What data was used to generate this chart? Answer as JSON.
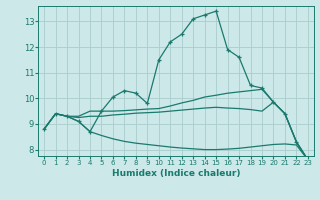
{
  "xlabel": "Humidex (Indice chaleur)",
  "bg_color": "#cce8e8",
  "line_color": "#1a7a6e",
  "grid_color": "#aacccc",
  "xlim": [
    -0.5,
    23.5
  ],
  "ylim": [
    7.75,
    13.6
  ],
  "xticks": [
    0,
    1,
    2,
    3,
    4,
    5,
    6,
    7,
    8,
    9,
    10,
    11,
    12,
    13,
    14,
    15,
    16,
    17,
    18,
    19,
    20,
    21,
    22,
    23
  ],
  "yticks": [
    8,
    9,
    10,
    11,
    12,
    13
  ],
  "line1_x": [
    0,
    1,
    2,
    3,
    4,
    5,
    6,
    7,
    8,
    9,
    10,
    11,
    12,
    13,
    14,
    15,
    16,
    17,
    18,
    19,
    20,
    21,
    22,
    23
  ],
  "line1_y": [
    8.8,
    9.4,
    9.3,
    9.1,
    8.7,
    9.5,
    10.05,
    10.3,
    10.2,
    9.8,
    11.5,
    12.2,
    12.5,
    13.1,
    13.25,
    13.4,
    11.9,
    11.6,
    10.5,
    10.4,
    9.85,
    9.4,
    8.3,
    7.6
  ],
  "line2_x": [
    0,
    1,
    2,
    3,
    4,
    5,
    6,
    7,
    8,
    9,
    10,
    11,
    12,
    13,
    14,
    15,
    16,
    17,
    18,
    19,
    20,
    21,
    22,
    23
  ],
  "line2_y": [
    8.8,
    9.4,
    9.3,
    9.3,
    9.5,
    9.5,
    9.5,
    9.52,
    9.55,
    9.58,
    9.6,
    9.7,
    9.82,
    9.92,
    10.05,
    10.12,
    10.2,
    10.25,
    10.3,
    10.35,
    9.85,
    9.4,
    8.3,
    7.6
  ],
  "line3_x": [
    0,
    1,
    2,
    3,
    4,
    5,
    6,
    7,
    8,
    9,
    10,
    11,
    12,
    13,
    14,
    15,
    16,
    17,
    18,
    19,
    20,
    21,
    22,
    23
  ],
  "line3_y": [
    8.8,
    9.4,
    9.3,
    9.25,
    9.3,
    9.3,
    9.35,
    9.38,
    9.42,
    9.44,
    9.46,
    9.5,
    9.54,
    9.58,
    9.62,
    9.65,
    9.62,
    9.6,
    9.56,
    9.5,
    9.85,
    9.4,
    8.3,
    7.6
  ],
  "line4_x": [
    0,
    1,
    2,
    3,
    4,
    5,
    6,
    7,
    8,
    9,
    10,
    11,
    12,
    13,
    14,
    15,
    16,
    17,
    18,
    19,
    20,
    21,
    22,
    23
  ],
  "line4_y": [
    8.8,
    9.4,
    9.3,
    9.1,
    8.7,
    8.55,
    8.42,
    8.32,
    8.25,
    8.2,
    8.15,
    8.1,
    8.06,
    8.03,
    8.0,
    8.0,
    8.02,
    8.05,
    8.1,
    8.15,
    8.2,
    8.22,
    8.18,
    7.6
  ]
}
